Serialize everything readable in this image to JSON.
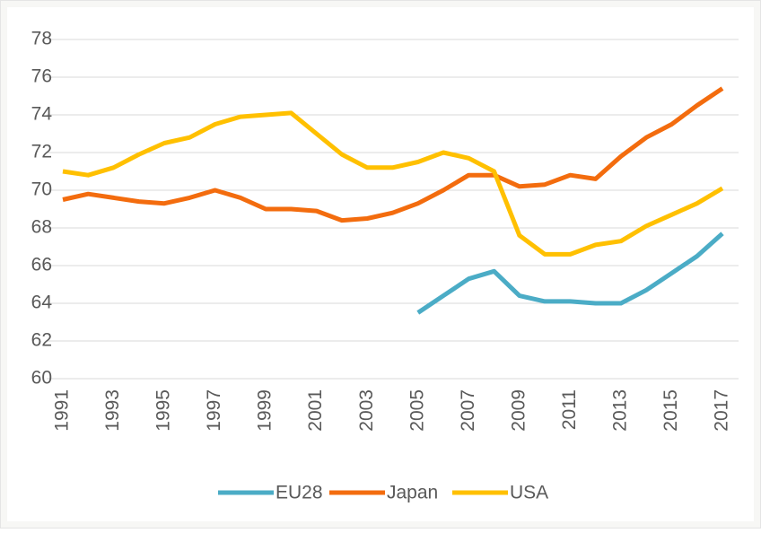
{
  "chart_data": {
    "type": "line",
    "x": [
      1991,
      1992,
      1993,
      1994,
      1995,
      1996,
      1997,
      1998,
      1999,
      2000,
      2001,
      2002,
      2003,
      2004,
      2005,
      2006,
      2007,
      2008,
      2009,
      2010,
      2011,
      2012,
      2013,
      2014,
      2015,
      2016,
      2017
    ],
    "xlim": [
      1991,
      2017
    ],
    "xticks": [
      1991,
      1993,
      1995,
      1997,
      1999,
      2001,
      2003,
      2005,
      2007,
      2009,
      2011,
      2013,
      2015,
      2017
    ],
    "ylim": [
      60,
      78
    ],
    "yticks": [
      60,
      62,
      64,
      66,
      68,
      70,
      72,
      74,
      76,
      78
    ],
    "grid": true,
    "legend": "bottom",
    "series": [
      {
        "name": "EU28",
        "color": "#4bacc6",
        "values": [
          null,
          null,
          null,
          null,
          null,
          null,
          null,
          null,
          null,
          null,
          null,
          null,
          null,
          null,
          63.5,
          64.4,
          65.3,
          65.7,
          64.4,
          64.1,
          64.1,
          64.0,
          64.0,
          64.7,
          65.6,
          66.5,
          67.7
        ]
      },
      {
        "name": "Japan",
        "color": "#f36c0e",
        "values": [
          69.5,
          69.8,
          69.6,
          69.4,
          69.3,
          69.6,
          70.0,
          69.6,
          69.0,
          69.0,
          68.9,
          68.4,
          68.5,
          68.8,
          69.3,
          70.0,
          70.8,
          70.8,
          70.2,
          70.3,
          70.8,
          70.6,
          71.8,
          72.8,
          73.5,
          74.5,
          75.4
        ]
      },
      {
        "name": "USA",
        "color": "#ffc000",
        "values": [
          71.0,
          70.8,
          71.2,
          71.9,
          72.5,
          72.8,
          73.5,
          73.9,
          74.0,
          74.1,
          73.0,
          71.9,
          71.2,
          71.2,
          71.5,
          72.0,
          71.7,
          71.0,
          67.6,
          66.6,
          66.6,
          67.1,
          67.3,
          68.1,
          68.7,
          69.3,
          70.1
        ]
      }
    ]
  }
}
